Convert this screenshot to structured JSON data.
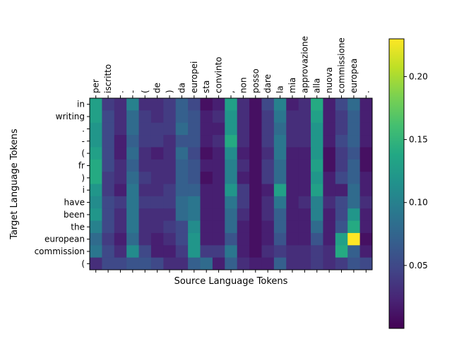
{
  "chart_data": {
    "type": "heatmap",
    "xlabel": "Source Language Tokens",
    "ylabel": "Target Language Tokens",
    "x_tick_position": "top",
    "x_tokens": [
      "per",
      "iscritto",
      ".",
      "-",
      "(",
      "de",
      ")",
      "da",
      "europei",
      "sta",
      "convinto",
      ",",
      "non",
      "posso",
      "dare",
      "la",
      "mia",
      "approvazione",
      "alla",
      "nuova",
      "commissione",
      "europea",
      "."
    ],
    "y_tokens": [
      "in",
      "writing",
      ".",
      "-",
      "(",
      "fr",
      ")",
      "i",
      "have",
      "been",
      "the",
      "european",
      "commission",
      "("
    ],
    "colorbar": {
      "ticks": [
        0.05,
        0.1,
        0.15,
        0.2
      ],
      "tick_labels": [
        "0.05",
        "0.10",
        "0.15",
        "0.20"
      ],
      "vmin": 0.0,
      "vmax": 0.23
    },
    "colormap": "viridis",
    "values": [
      [
        0.13,
        0.04,
        0.03,
        0.1,
        0.03,
        0.03,
        0.04,
        0.07,
        0.05,
        0.01,
        0.02,
        0.13,
        0.03,
        0.01,
        0.05,
        0.1,
        0.02,
        0.03,
        0.14,
        0.02,
        0.05,
        0.08,
        0.02
      ],
      [
        0.13,
        0.05,
        0.03,
        0.08,
        0.04,
        0.03,
        0.04,
        0.07,
        0.06,
        0.02,
        0.03,
        0.12,
        0.03,
        0.01,
        0.04,
        0.09,
        0.03,
        0.03,
        0.13,
        0.02,
        0.04,
        0.07,
        0.02
      ],
      [
        0.12,
        0.05,
        0.03,
        0.08,
        0.04,
        0.04,
        0.04,
        0.08,
        0.06,
        0.02,
        0.02,
        0.12,
        0.03,
        0.01,
        0.04,
        0.08,
        0.03,
        0.03,
        0.12,
        0.02,
        0.04,
        0.07,
        0.02
      ],
      [
        0.12,
        0.05,
        0.02,
        0.07,
        0.04,
        0.04,
        0.03,
        0.06,
        0.06,
        0.02,
        0.03,
        0.14,
        0.03,
        0.01,
        0.04,
        0.09,
        0.03,
        0.03,
        0.12,
        0.02,
        0.05,
        0.07,
        0.02
      ],
      [
        0.13,
        0.05,
        0.02,
        0.08,
        0.03,
        0.02,
        0.03,
        0.08,
        0.05,
        0.01,
        0.02,
        0.11,
        0.02,
        0.01,
        0.03,
        0.09,
        0.02,
        0.02,
        0.12,
        0.01,
        0.04,
        0.06,
        0.01
      ],
      [
        0.14,
        0.05,
        0.03,
        0.07,
        0.03,
        0.03,
        0.03,
        0.07,
        0.06,
        0.02,
        0.02,
        0.1,
        0.03,
        0.01,
        0.04,
        0.08,
        0.02,
        0.02,
        0.13,
        0.01,
        0.04,
        0.07,
        0.01
      ],
      [
        0.14,
        0.04,
        0.03,
        0.08,
        0.04,
        0.03,
        0.03,
        0.07,
        0.06,
        0.01,
        0.02,
        0.1,
        0.02,
        0.01,
        0.04,
        0.08,
        0.02,
        0.02,
        0.12,
        0.02,
        0.05,
        0.07,
        0.02
      ],
      [
        0.12,
        0.04,
        0.02,
        0.09,
        0.03,
        0.03,
        0.04,
        0.07,
        0.07,
        0.02,
        0.02,
        0.12,
        0.04,
        0.01,
        0.02,
        0.13,
        0.02,
        0.02,
        0.13,
        0.02,
        0.02,
        0.08,
        0.02
      ],
      [
        0.11,
        0.05,
        0.04,
        0.09,
        0.04,
        0.04,
        0.04,
        0.08,
        0.09,
        0.02,
        0.02,
        0.09,
        0.04,
        0.01,
        0.03,
        0.09,
        0.02,
        0.03,
        0.1,
        0.03,
        0.05,
        0.08,
        0.03
      ],
      [
        0.12,
        0.05,
        0.03,
        0.09,
        0.03,
        0.03,
        0.03,
        0.08,
        0.09,
        0.02,
        0.02,
        0.08,
        0.03,
        0.01,
        0.03,
        0.07,
        0.02,
        0.02,
        0.1,
        0.02,
        0.05,
        0.12,
        0.02
      ],
      [
        0.1,
        0.05,
        0.03,
        0.09,
        0.03,
        0.03,
        0.04,
        0.05,
        0.11,
        0.02,
        0.02,
        0.08,
        0.02,
        0.01,
        0.02,
        0.07,
        0.02,
        0.02,
        0.08,
        0.02,
        0.06,
        0.14,
        0.02
      ],
      [
        0.08,
        0.04,
        0.02,
        0.08,
        0.03,
        0.02,
        0.03,
        0.05,
        0.12,
        0.02,
        0.02,
        0.06,
        0.02,
        0.01,
        0.02,
        0.06,
        0.02,
        0.02,
        0.06,
        0.02,
        0.13,
        0.23,
        0.01
      ],
      [
        0.09,
        0.05,
        0.03,
        0.11,
        0.05,
        0.02,
        0.02,
        0.04,
        0.12,
        0.04,
        0.04,
        0.09,
        0.02,
        0.01,
        0.03,
        0.04,
        0.03,
        0.03,
        0.04,
        0.03,
        0.14,
        0.07,
        0.02
      ],
      [
        0.03,
        0.05,
        0.05,
        0.06,
        0.06,
        0.05,
        0.03,
        0.03,
        0.07,
        0.08,
        0.02,
        0.07,
        0.03,
        0.02,
        0.02,
        0.07,
        0.03,
        0.03,
        0.04,
        0.03,
        0.04,
        0.06,
        0.05
      ]
    ]
  }
}
